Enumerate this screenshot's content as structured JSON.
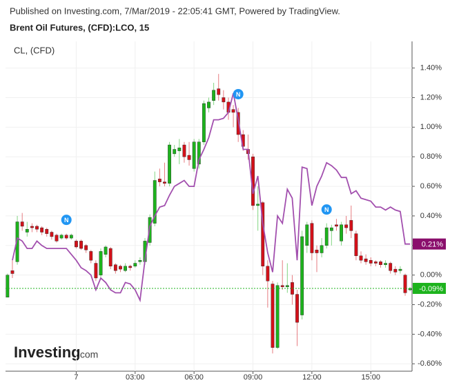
{
  "chart_data": {
    "type": "candlestick",
    "published": "Published on Investing.com, 7/Mar/2019 - 22:05:41 GMT, Powered by TradingView.",
    "title": "Brent Oil Futures, (CFD):LCO, 15",
    "logo": {
      "name": "Investing",
      "suffix": ".com"
    },
    "xlim": [
      -3.6,
      17.1
    ],
    "ylim": [
      -0.65,
      1.58
    ],
    "xticks": [
      {
        "value": 0,
        "label": "7"
      },
      {
        "value": 3,
        "label": "03:00"
      },
      {
        "value": 6,
        "label": "06:00"
      },
      {
        "value": 9,
        "label": "09:00"
      },
      {
        "value": 12,
        "label": "12:00"
      },
      {
        "value": 15,
        "label": "15:00"
      }
    ],
    "yticks": [
      {
        "value": -0.6,
        "label": "-0.60%"
      },
      {
        "value": -0.4,
        "label": "-0.40%"
      },
      {
        "value": -0.2,
        "label": "-0.20%"
      },
      {
        "value": 0,
        "label": "0.00%"
      },
      {
        "value": 0.2,
        "label": "0.20%"
      },
      {
        "value": 0.4,
        "label": "0.40%"
      },
      {
        "value": 0.6,
        "label": "0.60%"
      },
      {
        "value": 0.8,
        "label": "0.80%"
      },
      {
        "value": 1.0,
        "label": "1.00%"
      },
      {
        "value": 1.2,
        "label": "1.20%"
      },
      {
        "value": 1.4,
        "label": "1.40%"
      }
    ],
    "grid": true,
    "x": [
      -3.5,
      -3.25,
      -3.0,
      -2.75,
      -2.5,
      -2.25,
      -2.0,
      -1.75,
      -1.5,
      -1.25,
      -1.0,
      -0.75,
      -0.5,
      -0.25,
      0,
      0.25,
      0.5,
      0.75,
      1.0,
      1.25,
      1.5,
      1.75,
      2.0,
      2.25,
      2.5,
      2.75,
      3.0,
      3.25,
      3.5,
      3.75,
      4.0,
      4.25,
      4.5,
      4.75,
      5.0,
      5.25,
      5.5,
      5.75,
      6.0,
      6.25,
      6.5,
      6.75,
      7.0,
      7.25,
      7.5,
      7.75,
      8.0,
      8.25,
      8.5,
      8.75,
      9.0,
      9.25,
      9.5,
      9.75,
      10.0,
      10.25,
      10.5,
      10.75,
      11.0,
      11.25,
      11.5,
      11.75,
      12.0,
      12.25,
      12.5,
      12.75,
      13.0,
      13.25,
      13.5,
      13.75,
      14.0,
      14.25,
      14.5,
      14.75,
      15.0,
      15.25,
      15.5,
      15.75,
      16.0,
      16.25,
      16.5,
      16.75,
      17.0
    ],
    "candles": {
      "up_color": "#1db31d",
      "down_color": "#d3111a",
      "open": [
        -0.15,
        0.03,
        0.09,
        0.36,
        0.29,
        0.33,
        0.33,
        0.32,
        0.31,
        0.29,
        0.27,
        0.25,
        0.27,
        0.25,
        0.23,
        0.23,
        0.2,
        0.16,
        0.08,
        0.0,
        0.14,
        0.18,
        0.07,
        0.06,
        0.03,
        0.06,
        0.06,
        0.09,
        0.09,
        0.22,
        0.35,
        0.65,
        0.63,
        0.62,
        0.82,
        0.84,
        0.88,
        0.81,
        0.72,
        0.75,
        0.9,
        1.13,
        1.18,
        1.26,
        1.2,
        1.17,
        1.12,
        1.1,
        0.95,
        0.85,
        0.8,
        0.47,
        0.49,
        0.06,
        -0.06,
        -0.49,
        -0.07,
        -0.08,
        -0.05,
        -0.13,
        -0.27,
        0.2,
        0.35,
        0.17,
        0.15,
        0.2,
        0.3,
        0.34,
        0.23,
        0.34,
        0.37,
        0.28,
        0.13,
        0.11,
        0.1,
        0.09,
        0.09,
        0.07,
        0.08,
        0.04,
        0.03,
        0.0,
        -0.1
      ],
      "high": [
        0.01,
        0.1,
        0.4,
        0.42,
        0.36,
        0.35,
        0.34,
        0.33,
        0.32,
        0.3,
        0.28,
        0.28,
        0.28,
        0.28,
        0.24,
        0.24,
        0.21,
        0.17,
        0.1,
        0.18,
        0.2,
        0.19,
        0.08,
        0.07,
        0.08,
        0.07,
        0.1,
        0.12,
        0.25,
        0.41,
        0.7,
        0.72,
        0.76,
        0.9,
        0.88,
        0.92,
        0.9,
        0.9,
        0.92,
        0.92,
        1.18,
        1.2,
        1.3,
        1.36,
        1.25,
        1.2,
        1.15,
        1.13,
        0.98,
        0.95,
        0.82,
        0.6,
        0.5,
        0.1,
        -0.04,
        -0.05,
        0.1,
        0.08,
        0.0,
        -0.1,
        0.3,
        0.36,
        0.37,
        0.2,
        0.25,
        0.35,
        0.34,
        0.38,
        0.36,
        0.4,
        0.47,
        0.3,
        0.16,
        0.14,
        0.12,
        0.1,
        0.1,
        0.1,
        0.09,
        0.06,
        0.06,
        0.01,
        -0.08
      ],
      "low": [
        -0.15,
        -0.02,
        0.07,
        0.3,
        0.26,
        0.29,
        0.29,
        0.27,
        0.26,
        0.24,
        0.22,
        0.24,
        0.24,
        0.24,
        0.18,
        0.17,
        0.15,
        0.08,
        -0.04,
        -0.02,
        0.12,
        0.04,
        0.01,
        0.02,
        0.02,
        0.03,
        0.05,
        0.07,
        0.07,
        0.2,
        0.33,
        0.6,
        0.6,
        0.6,
        0.8,
        0.75,
        0.76,
        0.74,
        0.7,
        0.72,
        0.88,
        1.1,
        1.15,
        1.18,
        1.12,
        1.05,
        1.0,
        0.9,
        0.84,
        0.78,
        0.44,
        0.3,
        0.0,
        -0.22,
        -0.53,
        -0.5,
        -0.1,
        -0.12,
        -0.2,
        -0.48,
        -0.3,
        0.15,
        0.1,
        0.02,
        0.12,
        0.18,
        0.2,
        0.3,
        0.2,
        0.28,
        0.25,
        0.1,
        0.08,
        0.07,
        0.06,
        0.06,
        0.05,
        0.05,
        0.01,
        0.0,
        0.01,
        -0.14,
        -0.11
      ],
      "close": [
        0.0,
        0.01,
        0.36,
        0.33,
        0.31,
        0.32,
        0.31,
        0.29,
        0.28,
        0.26,
        0.23,
        0.27,
        0.25,
        0.27,
        0.19,
        0.18,
        0.17,
        0.1,
        -0.02,
        0.16,
        0.19,
        0.06,
        0.03,
        0.04,
        0.06,
        0.05,
        0.08,
        0.1,
        0.23,
        0.39,
        0.64,
        0.63,
        0.62,
        0.88,
        0.85,
        0.86,
        0.8,
        0.78,
        0.9,
        0.9,
        1.16,
        1.17,
        1.25,
        1.22,
        1.17,
        1.1,
        1.1,
        0.95,
        0.87,
        0.82,
        0.47,
        0.48,
        0.06,
        -0.04,
        -0.49,
        -0.07,
        -0.08,
        -0.07,
        -0.13,
        -0.32,
        0.26,
        0.34,
        0.15,
        0.15,
        0.2,
        0.32,
        0.32,
        0.33,
        0.34,
        0.32,
        0.3,
        0.13,
        0.1,
        0.09,
        0.08,
        0.08,
        0.07,
        0.08,
        0.03,
        0.02,
        0.04,
        -0.12,
        -0.09
      ],
      "last_label": {
        "value": -0.09,
        "label": "-0.09%"
      }
    },
    "line": {
      "name": "CL,  (CFD)",
      "color": "#a24fae",
      "values": [
        null,
        0.1,
        0.25,
        0.23,
        0.18,
        0.18,
        0.23,
        0.2,
        0.18,
        0.18,
        0.18,
        0.18,
        0.18,
        0.14,
        0.1,
        0.05,
        0.03,
        0.0,
        -0.1,
        -0.02,
        -0.05,
        -0.1,
        -0.12,
        -0.12,
        -0.05,
        -0.06,
        -0.1,
        -0.17,
        0.1,
        0.33,
        0.4,
        0.46,
        0.47,
        0.54,
        0.6,
        0.62,
        0.64,
        0.6,
        0.6,
        0.78,
        0.85,
        0.93,
        1.05,
        1.05,
        1.06,
        1.1,
        1.23,
        1.05,
        0.85,
        0.85,
        0.55,
        0.67,
        0.35,
        0.15,
        0.02,
        0.4,
        0.35,
        0.58,
        0.52,
        0.1,
        0.73,
        0.72,
        0.47,
        0.6,
        0.67,
        0.76,
        0.74,
        0.71,
        0.66,
        0.66,
        0.55,
        0.57,
        0.52,
        0.51,
        0.5,
        0.46,
        0.46,
        0.44,
        0.46,
        0.44,
        0.43,
        0.21,
        0.21
      ],
      "last_label": {
        "value": 0.21,
        "label": "0.21%"
      }
    },
    "markers": [
      {
        "x": -0.5,
        "label": "N"
      },
      {
        "x": 8.25,
        "label": "N"
      },
      {
        "x": 12.75,
        "label": "N"
      }
    ]
  }
}
